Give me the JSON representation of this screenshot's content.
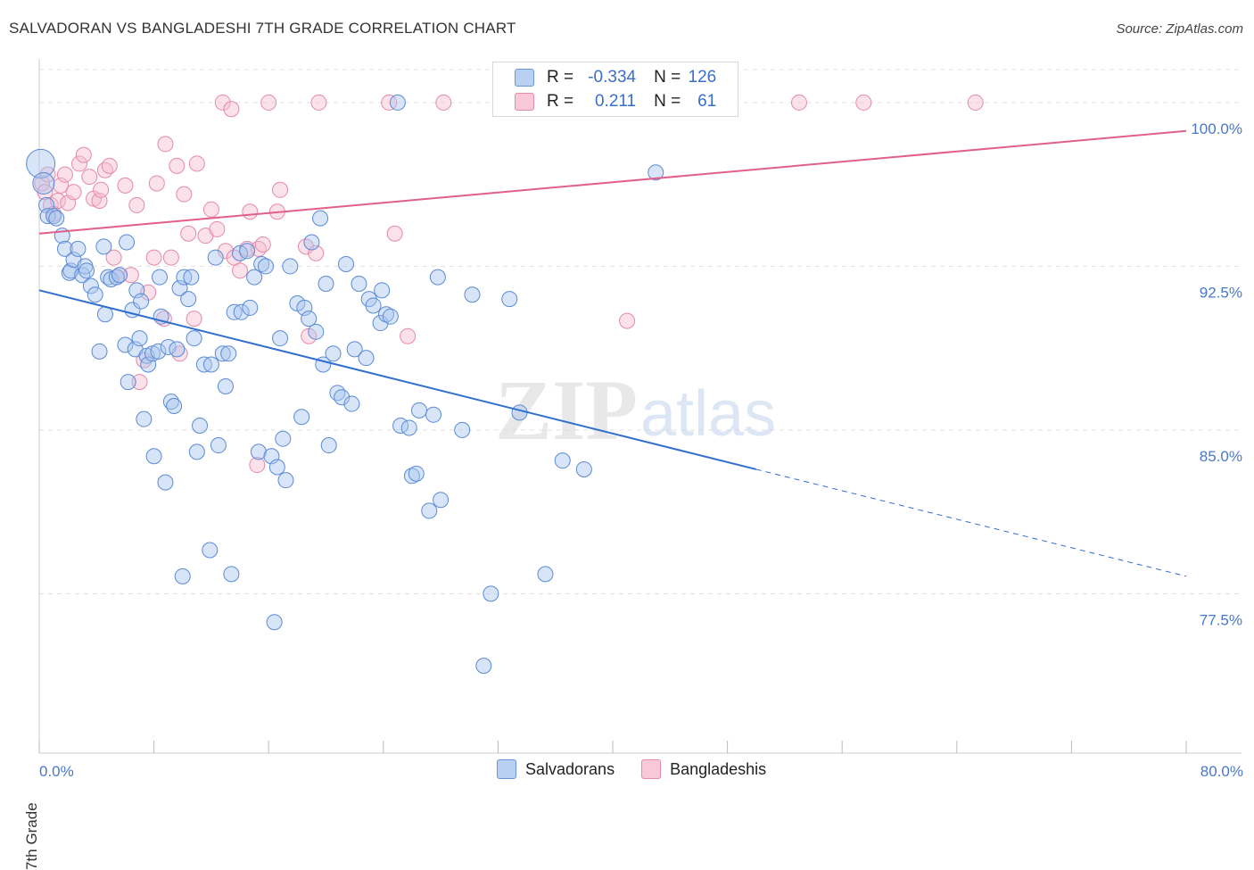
{
  "title": "SALVADORAN VS BANGLADESHI 7TH GRADE CORRELATION CHART",
  "source": "Source: ZipAtlas.com",
  "watermark": {
    "zip": "ZIP",
    "atlas": "atlas"
  },
  "colors": {
    "blue_fill": "#a8c6f0",
    "blue_stroke": "#5a8ad6",
    "blue_line": "#2f6fcf",
    "pink_fill": "#f6bcd0",
    "pink_stroke": "#e58aa8",
    "pink_line": "#e0608a",
    "axis_text": "#4a78c8",
    "grid": "#e0e0e0"
  },
  "legend": {
    "rows": [
      {
        "series": "Salvadorans",
        "r_label": "R =",
        "r_value": "-0.334",
        "n_label": "N =",
        "n_value": "126"
      },
      {
        "series": "Bangladeshis",
        "r_label": "R =",
        "r_value": "0.211",
        "n_label": "N =",
        "n_value": "61"
      }
    ]
  },
  "bottom_legend": [
    "Salvadorans",
    "Bangladeshis"
  ],
  "chart_data": {
    "type": "scatter",
    "title": "SALVADORAN VS BANGLADESHI 7TH GRADE CORRELATION CHART",
    "xlabel": "",
    "ylabel": "7th Grade",
    "xlim": [
      0,
      80
    ],
    "ylim": [
      70.2,
      102.0
    ],
    "x_tick_labels": [
      "0.0%",
      "80.0%"
    ],
    "y_ticks": [
      77.5,
      85.0,
      92.5,
      100.0
    ],
    "y_tick_labels": [
      "77.5%",
      "85.0%",
      "92.5%",
      "100.0%"
    ],
    "series": [
      {
        "name": "Salvadorans",
        "color": "#a8c6f0",
        "trend": {
          "x0": 0,
          "y0": 91.4,
          "x1": 50,
          "y1": 83.2,
          "dash_to_x": 80,
          "dash_to_y": 78.3
        },
        "points": [
          [
            0.1,
            97.2
          ],
          [
            0.3,
            96.3
          ],
          [
            0.5,
            95.3
          ],
          [
            0.6,
            94.8
          ],
          [
            1.0,
            94.8
          ],
          [
            1.2,
            94.7
          ],
          [
            1.6,
            93.9
          ],
          [
            1.8,
            93.3
          ],
          [
            2.1,
            92.2
          ],
          [
            2.2,
            92.3
          ],
          [
            2.4,
            92.8
          ],
          [
            2.7,
            93.3
          ],
          [
            3.0,
            92.1
          ],
          [
            3.2,
            92.5
          ],
          [
            3.3,
            92.3
          ],
          [
            3.6,
            91.6
          ],
          [
            3.9,
            91.2
          ],
          [
            4.2,
            88.6
          ],
          [
            4.5,
            93.4
          ],
          [
            4.6,
            90.3
          ],
          [
            4.8,
            92.0
          ],
          [
            5.0,
            91.9
          ],
          [
            5.4,
            92.0
          ],
          [
            5.6,
            92.1
          ],
          [
            6.0,
            88.9
          ],
          [
            6.1,
            93.6
          ],
          [
            6.2,
            87.2
          ],
          [
            6.5,
            90.5
          ],
          [
            6.7,
            88.7
          ],
          [
            6.8,
            91.4
          ],
          [
            7.0,
            89.2
          ],
          [
            7.1,
            90.9
          ],
          [
            7.3,
            85.5
          ],
          [
            7.5,
            88.4
          ],
          [
            7.6,
            88.0
          ],
          [
            7.9,
            88.5
          ],
          [
            8.0,
            83.8
          ],
          [
            8.3,
            88.6
          ],
          [
            8.4,
            92.0
          ],
          [
            8.5,
            90.2
          ],
          [
            8.8,
            82.6
          ],
          [
            9.0,
            88.8
          ],
          [
            9.2,
            86.3
          ],
          [
            9.4,
            86.1
          ],
          [
            9.6,
            88.7
          ],
          [
            9.8,
            91.5
          ],
          [
            10.0,
            78.3
          ],
          [
            10.1,
            92.0
          ],
          [
            10.4,
            91.0
          ],
          [
            10.6,
            92.0
          ],
          [
            10.8,
            89.2
          ],
          [
            11.0,
            84.0
          ],
          [
            11.2,
            85.2
          ],
          [
            11.5,
            88.0
          ],
          [
            11.9,
            79.5
          ],
          [
            12.0,
            88.0
          ],
          [
            12.3,
            92.9
          ],
          [
            12.5,
            84.3
          ],
          [
            12.8,
            88.5
          ],
          [
            13.0,
            87.0
          ],
          [
            13.2,
            88.5
          ],
          [
            13.4,
            78.4
          ],
          [
            13.6,
            90.4
          ],
          [
            14.0,
            93.1
          ],
          [
            14.1,
            90.4
          ],
          [
            14.5,
            93.2
          ],
          [
            14.7,
            90.6
          ],
          [
            15.0,
            92.0
          ],
          [
            15.3,
            84.0
          ],
          [
            15.5,
            92.6
          ],
          [
            15.8,
            92.5
          ],
          [
            16.2,
            83.8
          ],
          [
            16.4,
            76.2
          ],
          [
            16.6,
            83.3
          ],
          [
            16.8,
            89.2
          ],
          [
            17.0,
            84.6
          ],
          [
            17.2,
            82.7
          ],
          [
            17.5,
            92.5
          ],
          [
            18.0,
            90.8
          ],
          [
            18.3,
            85.6
          ],
          [
            18.5,
            90.6
          ],
          [
            18.8,
            90.1
          ],
          [
            19.0,
            93.6
          ],
          [
            19.3,
            89.5
          ],
          [
            19.6,
            94.7
          ],
          [
            19.8,
            88.0
          ],
          [
            20.0,
            91.7
          ],
          [
            20.2,
            84.3
          ],
          [
            20.5,
            88.5
          ],
          [
            20.8,
            86.7
          ],
          [
            21.1,
            86.5
          ],
          [
            21.4,
            92.6
          ],
          [
            21.8,
            86.2
          ],
          [
            22.0,
            88.7
          ],
          [
            22.3,
            91.7
          ],
          [
            22.8,
            88.3
          ],
          [
            23.0,
            91.0
          ],
          [
            23.3,
            90.7
          ],
          [
            23.8,
            89.9
          ],
          [
            23.9,
            91.4
          ],
          [
            24.2,
            90.3
          ],
          [
            24.5,
            90.2
          ],
          [
            25.0,
            100.0
          ],
          [
            25.2,
            85.2
          ],
          [
            25.8,
            85.1
          ],
          [
            26.0,
            82.9
          ],
          [
            26.3,
            83.0
          ],
          [
            26.5,
            85.9
          ],
          [
            27.2,
            81.3
          ],
          [
            27.5,
            85.7
          ],
          [
            27.8,
            92.0
          ],
          [
            28.0,
            81.8
          ],
          [
            29.5,
            85.0
          ],
          [
            30.2,
            91.2
          ],
          [
            31.0,
            74.2
          ],
          [
            31.5,
            77.5
          ],
          [
            32.8,
            91.0
          ],
          [
            33.5,
            85.8
          ],
          [
            35.3,
            78.4
          ],
          [
            36.5,
            83.6
          ],
          [
            38.0,
            83.2
          ],
          [
            43.0,
            96.8
          ]
        ]
      },
      {
        "name": "Bangladeshis",
        "color": "#f6bcd0",
        "trend": {
          "x0": 0,
          "y0": 94.0,
          "x1": 80,
          "y1": 98.7
        },
        "points": [
          [
            0.2,
            96.3
          ],
          [
            0.4,
            95.9
          ],
          [
            0.6,
            96.7
          ],
          [
            0.8,
            95.3
          ],
          [
            1.0,
            94.9
          ],
          [
            1.3,
            95.5
          ],
          [
            1.5,
            96.2
          ],
          [
            1.8,
            96.7
          ],
          [
            2.0,
            95.4
          ],
          [
            2.4,
            95.9
          ],
          [
            2.8,
            97.2
          ],
          [
            3.1,
            97.6
          ],
          [
            3.5,
            96.6
          ],
          [
            3.8,
            95.6
          ],
          [
            4.2,
            95.5
          ],
          [
            4.3,
            96.0
          ],
          [
            4.6,
            96.9
          ],
          [
            4.9,
            97.1
          ],
          [
            5.2,
            92.9
          ],
          [
            5.6,
            92.1
          ],
          [
            6.0,
            96.2
          ],
          [
            6.4,
            92.1
          ],
          [
            6.8,
            95.3
          ],
          [
            7.0,
            87.2
          ],
          [
            7.3,
            88.2
          ],
          [
            7.6,
            91.3
          ],
          [
            8.0,
            92.9
          ],
          [
            8.2,
            96.3
          ],
          [
            8.7,
            90.1
          ],
          [
            8.8,
            98.1
          ],
          [
            9.2,
            92.9
          ],
          [
            9.6,
            97.1
          ],
          [
            9.8,
            88.5
          ],
          [
            10.1,
            95.8
          ],
          [
            10.4,
            94.0
          ],
          [
            10.8,
            90.1
          ],
          [
            11.0,
            97.2
          ],
          [
            11.6,
            93.9
          ],
          [
            12.0,
            95.1
          ],
          [
            12.4,
            94.2
          ],
          [
            12.8,
            100.0
          ],
          [
            13.0,
            93.2
          ],
          [
            13.4,
            99.7
          ],
          [
            13.6,
            92.9
          ],
          [
            14.0,
            92.3
          ],
          [
            14.5,
            93.3
          ],
          [
            14.7,
            95.0
          ],
          [
            15.2,
            83.4
          ],
          [
            15.3,
            93.3
          ],
          [
            15.6,
            93.5
          ],
          [
            16.0,
            100.0
          ],
          [
            16.6,
            95.0
          ],
          [
            16.8,
            96.0
          ],
          [
            18.6,
            93.4
          ],
          [
            18.8,
            89.3
          ],
          [
            19.3,
            93.1
          ],
          [
            19.5,
            100.0
          ],
          [
            24.4,
            100.0
          ],
          [
            24.8,
            94.0
          ],
          [
            25.7,
            89.3
          ],
          [
            28.2,
            100.0
          ],
          [
            41.0,
            90.0
          ],
          [
            53.0,
            100.0
          ],
          [
            57.5,
            100.0
          ],
          [
            65.3,
            100.0
          ]
        ]
      }
    ]
  }
}
